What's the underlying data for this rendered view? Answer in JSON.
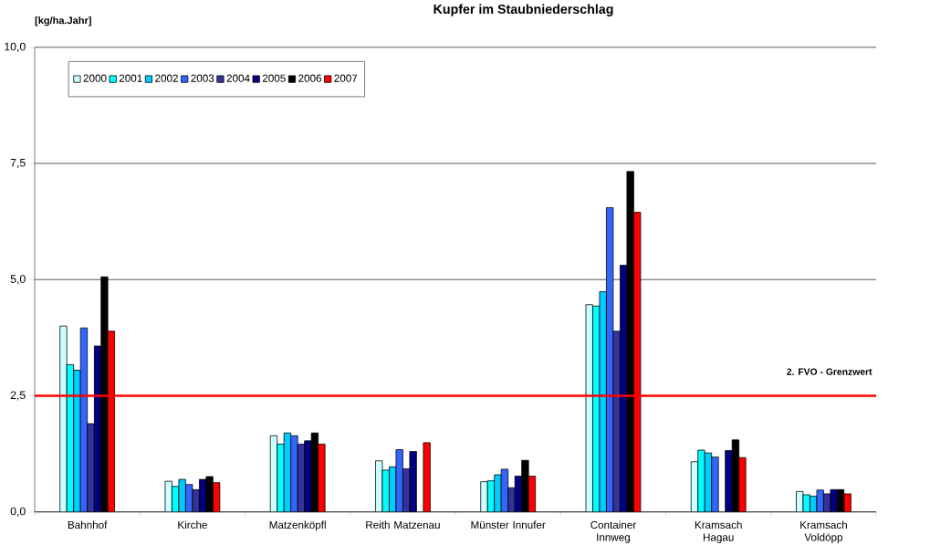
{
  "chart_data": {
    "type": "bar",
    "title": "Kupfer im Staubniederschlag",
    "ylabel": "[kg/ha.Jahr]",
    "categories": [
      "Bahnhof",
      "Kirche",
      "Matzenköpfl",
      "Reith Matzenau",
      "Münster Innufer",
      "Container Innweg",
      "Kramsach Hagau",
      "Kramsach Voldöpp"
    ],
    "series": [
      {
        "name": "2000",
        "color": "#ccffff",
        "values": [
          4.0,
          0.66,
          1.64,
          1.1,
          0.65,
          4.46,
          1.08,
          0.44
        ]
      },
      {
        "name": "2001",
        "color": "#00ffff",
        "values": [
          3.17,
          0.55,
          1.46,
          0.9,
          0.67,
          4.43,
          1.33,
          0.37
        ]
      },
      {
        "name": "2002",
        "color": "#00ccff",
        "values": [
          3.05,
          0.7,
          1.7,
          0.97,
          0.8,
          4.74,
          1.27,
          0.34
        ]
      },
      {
        "name": "2003",
        "color": "#3366ff",
        "values": [
          3.96,
          0.59,
          1.64,
          1.34,
          0.92,
          6.55,
          1.18,
          0.47
        ]
      },
      {
        "name": "2004",
        "color": "#333399",
        "values": [
          1.9,
          0.48,
          1.46,
          0.93,
          0.52,
          3.89,
          null,
          0.39
        ]
      },
      {
        "name": "2005",
        "color": "#000080",
        "values": [
          3.57,
          0.7,
          1.53,
          1.3,
          0.77,
          5.31,
          1.32,
          0.48
        ]
      },
      {
        "name": "2006",
        "color": "#000000",
        "values": [
          5.06,
          0.76,
          1.7,
          null,
          1.11,
          7.33,
          1.55,
          0.48
        ]
      },
      {
        "name": "2007",
        "color": "#ff0000",
        "values": [
          3.89,
          0.63,
          1.46,
          1.49,
          0.77,
          6.45,
          1.17,
          0.39
        ]
      }
    ],
    "ylim": [
      0,
      10
    ],
    "yticks": [
      {
        "value": 0,
        "label": "0,0"
      },
      {
        "value": 2.5,
        "label": "2,5"
      },
      {
        "value": 5,
        "label": "5,0"
      },
      {
        "value": 7.5,
        "label": "7,5"
      },
      {
        "value": 10,
        "label": "10,0"
      }
    ],
    "grid": "y",
    "legend": "top left",
    "ref_lines": [
      {
        "axis": "y",
        "value": 2.5,
        "label": "2. FVO - Grenzwert",
        "color": "#ff0000"
      }
    ]
  }
}
